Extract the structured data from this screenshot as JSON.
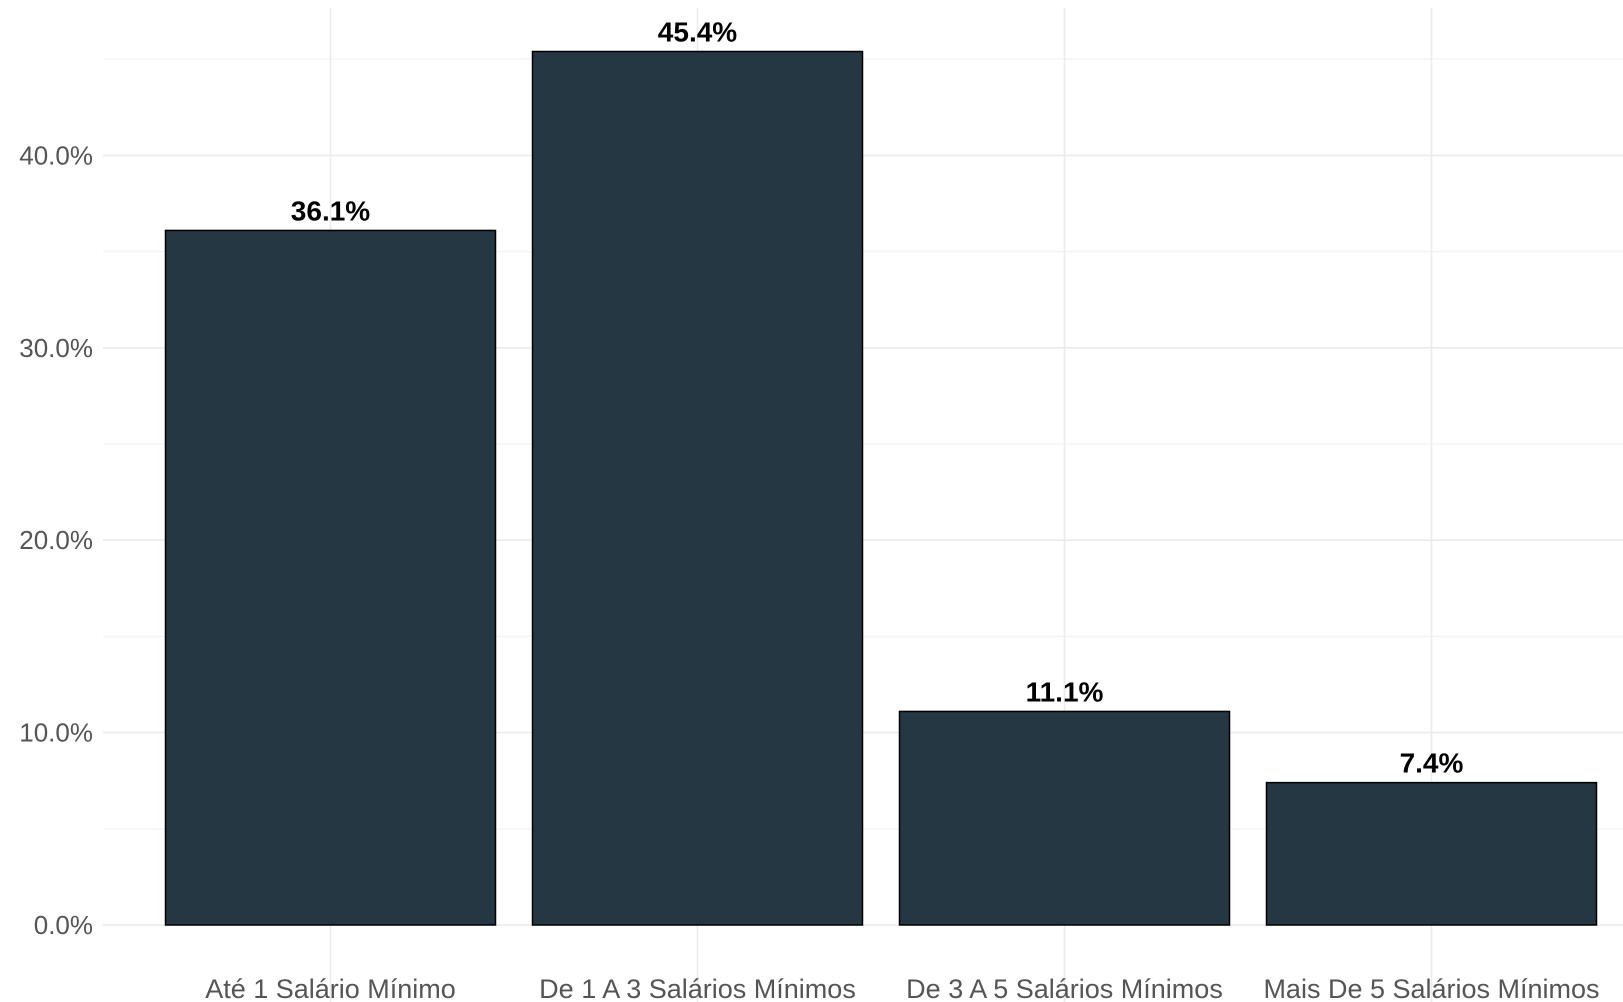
{
  "chart_data": {
    "type": "bar",
    "title": "",
    "xlabel": "",
    "ylabel": "",
    "categories": [
      "Até 1 Salário Mínimo",
      "De 1 A 3 Salários Mínimos",
      "De 3 A 5 Salários Mínimos",
      "Mais De 5 Salários Mínimos"
    ],
    "values": [
      36.1,
      45.4,
      11.1,
      7.4
    ],
    "data_labels": [
      "36.1%",
      "45.4%",
      "11.1%",
      "7.4%"
    ],
    "ylim": [
      0,
      47
    ],
    "yticks": [
      0,
      10,
      20,
      30,
      40
    ],
    "ytick_labels": [
      "0.0%",
      "10.0%",
      "20.0%",
      "30.0%",
      "40.0%"
    ],
    "grid": true,
    "legend": "none",
    "colors": {
      "bar_fill": "#243743",
      "bar_outline": "#000000"
    }
  }
}
